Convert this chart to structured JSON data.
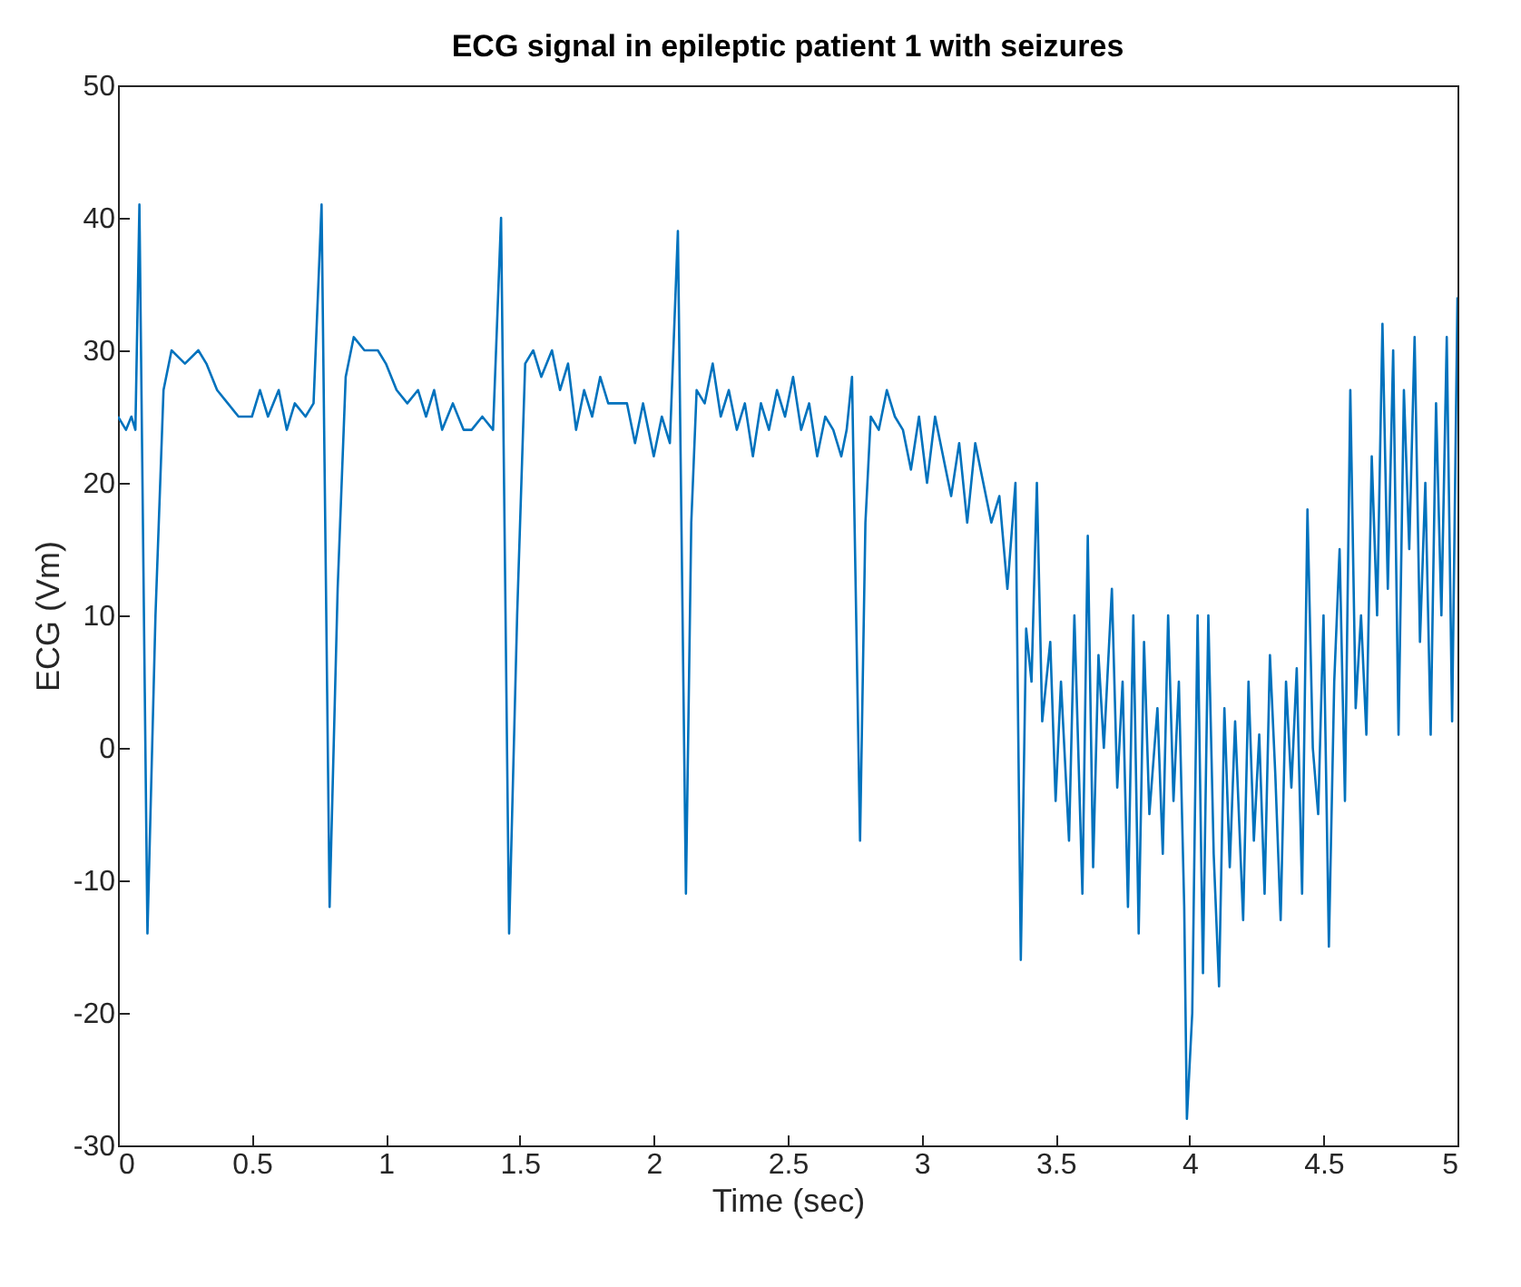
{
  "chart_data": {
    "type": "line",
    "title": "ECG signal in epileptic patient 1 with seizures",
    "xlabel": "Time (sec)",
    "ylabel": "ECG (Vm)",
    "xlim": [
      0,
      5
    ],
    "xticks": [
      0,
      0.5,
      1,
      1.5,
      2,
      2.5,
      3,
      3.5,
      4,
      4.5,
      5
    ],
    "ylim": [
      -30,
      50
    ],
    "yticks": [
      -30,
      -20,
      -10,
      0,
      10,
      20,
      30,
      40,
      50
    ],
    "grid": false,
    "series": [
      {
        "color": "#0072bd",
        "x": [
          0,
          0.03,
          0.05,
          0.065,
          0.08,
          0.11,
          0.14,
          0.17,
          0.2,
          0.25,
          0.3,
          0.33,
          0.37,
          0.41,
          0.45,
          0.5,
          0.53,
          0.56,
          0.6,
          0.63,
          0.66,
          0.7,
          0.73,
          0.76,
          0.79,
          0.82,
          0.85,
          0.88,
          0.92,
          0.97,
          1.0,
          1.04,
          1.08,
          1.12,
          1.15,
          1.18,
          1.21,
          1.25,
          1.29,
          1.32,
          1.36,
          1.4,
          1.43,
          1.46,
          1.49,
          1.52,
          1.55,
          1.58,
          1.62,
          1.65,
          1.68,
          1.71,
          1.74,
          1.77,
          1.8,
          1.83,
          1.86,
          1.9,
          1.93,
          1.96,
          2.0,
          2.03,
          2.06,
          2.09,
          2.12,
          2.14,
          2.16,
          2.19,
          2.22,
          2.25,
          2.28,
          2.31,
          2.34,
          2.37,
          2.4,
          2.43,
          2.46,
          2.49,
          2.52,
          2.55,
          2.58,
          2.61,
          2.64,
          2.67,
          2.7,
          2.72,
          2.74,
          2.77,
          2.79,
          2.81,
          2.84,
          2.87,
          2.9,
          2.93,
          2.96,
          2.99,
          3.02,
          3.05,
          3.08,
          3.11,
          3.14,
          3.17,
          3.2,
          3.23,
          3.26,
          3.29,
          3.32,
          3.35,
          3.37,
          3.39,
          3.41,
          3.43,
          3.45,
          3.48,
          3.5,
          3.52,
          3.55,
          3.57,
          3.6,
          3.62,
          3.64,
          3.66,
          3.68,
          3.71,
          3.73,
          3.75,
          3.77,
          3.79,
          3.81,
          3.83,
          3.85,
          3.88,
          3.9,
          3.92,
          3.94,
          3.96,
          3.98,
          3.99,
          4.01,
          4.03,
          4.05,
          4.07,
          4.09,
          4.11,
          4.13,
          4.15,
          4.17,
          4.2,
          4.22,
          4.24,
          4.26,
          4.28,
          4.3,
          4.32,
          4.34,
          4.36,
          4.38,
          4.4,
          4.42,
          4.44,
          4.46,
          4.48,
          4.5,
          4.52,
          4.54,
          4.56,
          4.58,
          4.6,
          4.62,
          4.64,
          4.66,
          4.68,
          4.7,
          4.72,
          4.74,
          4.76,
          4.78,
          4.8,
          4.82,
          4.84,
          4.86,
          4.88,
          4.9,
          4.92,
          4.94,
          4.96,
          4.98,
          5.0
        ],
        "values": [
          25,
          24,
          25,
          24,
          41,
          -14,
          10,
          27,
          30,
          29,
          30,
          29,
          27,
          26,
          25,
          25,
          27,
          25,
          27,
          24,
          26,
          25,
          26,
          41,
          -12,
          12,
          28,
          31,
          30,
          30,
          29,
          27,
          26,
          27,
          25,
          27,
          24,
          26,
          24,
          24,
          25,
          24,
          40,
          -14,
          10,
          29,
          30,
          28,
          30,
          27,
          29,
          24,
          27,
          25,
          28,
          26,
          26,
          26,
          23,
          26,
          22,
          25,
          23,
          39,
          -11,
          17,
          27,
          26,
          29,
          25,
          27,
          24,
          26,
          22,
          26,
          24,
          27,
          25,
          28,
          24,
          26,
          22,
          25,
          24,
          22,
          24,
          28,
          -7,
          17,
          25,
          24,
          27,
          25,
          24,
          21,
          25,
          20,
          25,
          22,
          19,
          23,
          17,
          23,
          20,
          17,
          19,
          12,
          20,
          -16,
          9,
          5,
          20,
          2,
          8,
          -4,
          5,
          -7,
          10,
          -11,
          16,
          -9,
          7,
          0,
          12,
          -3,
          5,
          -12,
          10,
          -14,
          8,
          -5,
          3,
          -8,
          10,
          -4,
          5,
          -12,
          -28,
          -20,
          10,
          -17,
          10,
          -8,
          -18,
          3,
          -9,
          2,
          -13,
          5,
          -7,
          1,
          -11,
          7,
          -2,
          -13,
          5,
          -3,
          6,
          -11,
          18,
          0,
          -5,
          10,
          -15,
          5,
          15,
          -4,
          27,
          3,
          10,
          1,
          22,
          10,
          32,
          12,
          30,
          1,
          27,
          15,
          31,
          8,
          20,
          1,
          26,
          10,
          31,
          2,
          34
        ]
      }
    ]
  }
}
